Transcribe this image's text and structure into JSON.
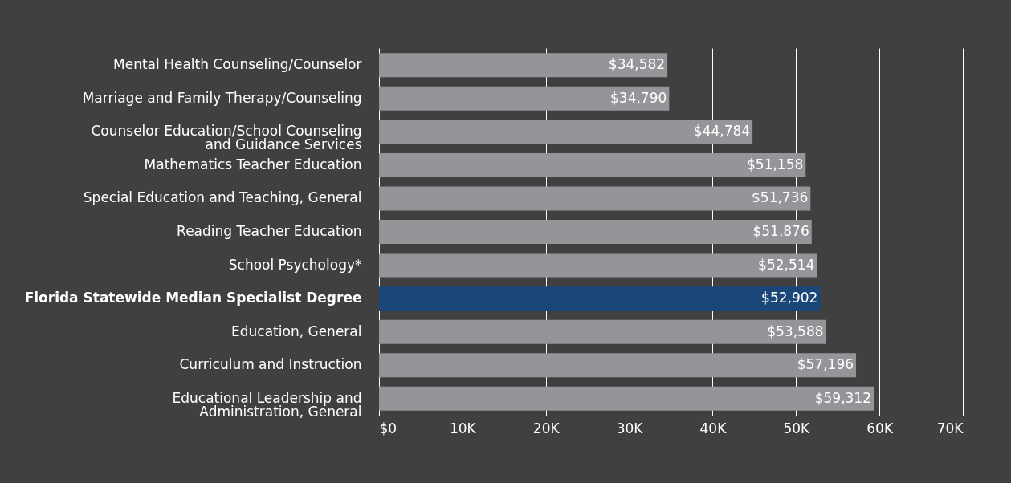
{
  "chart_data": {
    "type": "bar",
    "orientation": "horizontal",
    "categories": [
      "Mental Health Counseling/Counselor",
      "Marriage and Family Therapy/Counseling",
      "Counselor Education/School Counseling\nand Guidance Services",
      "Mathematics Teacher Education",
      "Special Education and Teaching, General",
      "Reading Teacher Education",
      "School Psychology*",
      "Florida Statewide Median Specialist Degree",
      "Education, General",
      "Curriculum and Instruction",
      "Educational Leadership and\nAdministration, General"
    ],
    "values": [
      34582,
      34790,
      44784,
      51158,
      51736,
      51876,
      52514,
      52902,
      53588,
      57196,
      59312
    ],
    "colors": [
      "#939598",
      "#939598",
      "#939598",
      "#939598",
      "#939598",
      "#939598",
      "#939598",
      "#1a4778",
      "#939598",
      "#939598",
      "#939598"
    ],
    "xlim": [
      0,
      70000
    ],
    "value_labels": [
      "$34,582",
      "$34,790",
      "$44,784",
      "$51,158",
      "$51,736",
      "$51,876",
      "$52,514",
      "$52,902",
      "$53,588",
      "$57,196",
      "$59,312"
    ],
    "xticks": [
      {
        "value": 0,
        "label": "$0"
      },
      {
        "value": 10000,
        "label": "10K"
      },
      {
        "value": 20000,
        "label": "20K"
      },
      {
        "value": 30000,
        "label": "30K"
      },
      {
        "value": 40000,
        "label": "40K"
      },
      {
        "value": 50000,
        "label": "50K"
      },
      {
        "value": 60000,
        "label": "60K"
      },
      {
        "value": 70000,
        "label": "70K"
      }
    ],
    "grid": "x"
  }
}
